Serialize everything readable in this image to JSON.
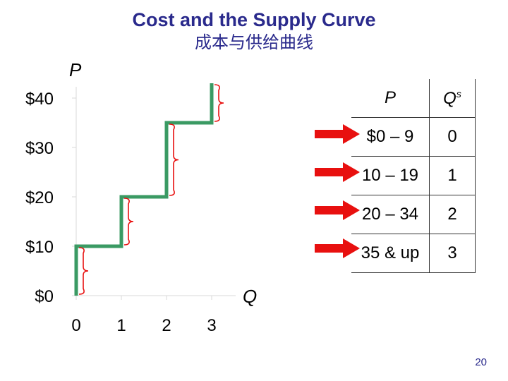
{
  "title": "Cost and the Supply Curve",
  "subtitle": "成本与供给曲线",
  "page_number": "20",
  "chart_data": {
    "type": "line",
    "step": "vertical-then-horizontal",
    "ylabel": "P",
    "xlabel": "Q",
    "y_ticks": [
      "$0",
      "$10",
      "$20",
      "$30",
      "$40"
    ],
    "y_tick_values": [
      0,
      10,
      20,
      30,
      40
    ],
    "x_ticks": [
      "0",
      "1",
      "2",
      "3"
    ],
    "x_tick_values": [
      0,
      1,
      2,
      3
    ],
    "xlim": [
      0,
      3
    ],
    "ylim": [
      0,
      40
    ],
    "points": [
      {
        "x": 0,
        "y": 0
      },
      {
        "x": 0,
        "y": 10
      },
      {
        "x": 1,
        "y": 10
      },
      {
        "x": 1,
        "y": 20
      },
      {
        "x": 2,
        "y": 20
      },
      {
        "x": 2,
        "y": 35
      },
      {
        "x": 3,
        "y": 35
      },
      {
        "x": 3,
        "y": 43
      }
    ],
    "bracket_ranges": [
      [
        0,
        10
      ],
      [
        10,
        20
      ],
      [
        20,
        35
      ],
      [
        35,
        43
      ]
    ],
    "line_color": "#3a9a63",
    "bracket_color": "#e8100f",
    "grid": false
  },
  "table": {
    "header_p": "P",
    "header_q": "Q",
    "header_q_sup": "s",
    "rows": [
      {
        "p": "$0 – 9",
        "q": "0"
      },
      {
        "p": "10 – 19",
        "q": "1"
      },
      {
        "p": "20 – 34",
        "q": "2"
      },
      {
        "p": "35 & up",
        "q": "3"
      }
    ],
    "arrow_color": "#e8100f"
  }
}
